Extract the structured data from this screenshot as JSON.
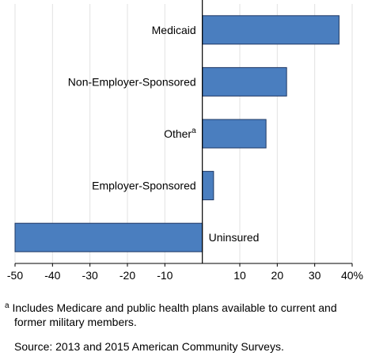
{
  "chart_data": {
    "type": "bar",
    "orientation": "horizontal",
    "categories": [
      "Medicaid",
      "Non-Employer-Sponsored",
      "Other",
      "Employer-Sponsored",
      "Uninsured"
    ],
    "category_superscripts": [
      "",
      "",
      "a",
      "",
      ""
    ],
    "values": [
      36.5,
      22.5,
      17,
      3,
      -50
    ],
    "xlim": [
      -50,
      40
    ],
    "xticks": [
      -50,
      -40,
      -30,
      -20,
      -10,
      10,
      20,
      30,
      40
    ],
    "xtick_labels": [
      "-50",
      "-40",
      "-30",
      "-20",
      "-10",
      "10",
      "20",
      "30",
      "40%"
    ],
    "grid": true,
    "bar_color": "#4a7ebf",
    "bar_edge_color": "#1f3864"
  },
  "footnote": {
    "marker": "a",
    "line1": "Includes Medicare and public health plans available to current and",
    "line2": "former military members."
  },
  "source": "Source: 2013 and 2015 American Community Surveys."
}
